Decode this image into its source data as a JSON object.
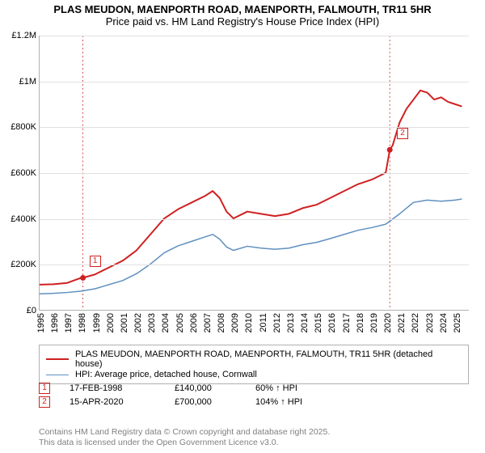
{
  "title": {
    "line1": "PLAS MEUDON, MAENPORTH ROAD, MAENPORTH, FALMOUTH, TR11 5HR",
    "line2": "Price paid vs. HM Land Registry's House Price Index (HPI)"
  },
  "chart": {
    "type": "line",
    "x_years": [
      1995,
      1996,
      1997,
      1998,
      1999,
      2000,
      2001,
      2002,
      2003,
      2004,
      2005,
      2006,
      2007,
      2008,
      2009,
      2010,
      2011,
      2012,
      2013,
      2014,
      2015,
      2016,
      2017,
      2018,
      2019,
      2020,
      2021,
      2022,
      2023,
      2024,
      2025
    ],
    "y_ticks": [
      0,
      200000,
      400000,
      600000,
      800000,
      1000000,
      1200000
    ],
    "y_tick_labels": [
      "£0",
      "£200K",
      "£400K",
      "£600K",
      "£800K",
      "£1M",
      "£1.2M"
    ],
    "ylim": [
      0,
      1200000
    ],
    "xlim": [
      1995,
      2026
    ],
    "background_color": "#ffffff",
    "grid_color": "#e0e0e0",
    "axis_color": "#b0b0b0",
    "series": [
      {
        "name": "property",
        "color": "#d02020",
        "width": 2,
        "points": [
          [
            1995,
            110000
          ],
          [
            1996,
            112000
          ],
          [
            1997,
            118000
          ],
          [
            1998,
            140000
          ],
          [
            1998.13,
            140000
          ],
          [
            1999,
            155000
          ],
          [
            2000,
            185000
          ],
          [
            2001,
            215000
          ],
          [
            2002,
            260000
          ],
          [
            2003,
            330000
          ],
          [
            2004,
            400000
          ],
          [
            2005,
            440000
          ],
          [
            2006,
            470000
          ],
          [
            2007,
            500000
          ],
          [
            2007.5,
            520000
          ],
          [
            2008,
            490000
          ],
          [
            2008.5,
            430000
          ],
          [
            2009,
            400000
          ],
          [
            2010,
            430000
          ],
          [
            2011,
            420000
          ],
          [
            2012,
            410000
          ],
          [
            2013,
            420000
          ],
          [
            2014,
            445000
          ],
          [
            2015,
            460000
          ],
          [
            2016,
            490000
          ],
          [
            2017,
            520000
          ],
          [
            2018,
            550000
          ],
          [
            2019,
            570000
          ],
          [
            2020,
            600000
          ],
          [
            2020.29,
            700000
          ],
          [
            2020.5,
            720000
          ],
          [
            2021,
            820000
          ],
          [
            2021.5,
            880000
          ],
          [
            2022,
            920000
          ],
          [
            2022.5,
            960000
          ],
          [
            2023,
            950000
          ],
          [
            2023.5,
            920000
          ],
          [
            2024,
            930000
          ],
          [
            2024.5,
            910000
          ],
          [
            2025,
            900000
          ],
          [
            2025.5,
            890000
          ]
        ]
      },
      {
        "name": "hpi",
        "color": "#6090c0",
        "width": 1.5,
        "points": [
          [
            1995,
            70000
          ],
          [
            1996,
            72000
          ],
          [
            1997,
            76000
          ],
          [
            1998,
            82000
          ],
          [
            1999,
            92000
          ],
          [
            2000,
            110000
          ],
          [
            2001,
            128000
          ],
          [
            2002,
            158000
          ],
          [
            2003,
            200000
          ],
          [
            2004,
            250000
          ],
          [
            2005,
            280000
          ],
          [
            2006,
            300000
          ],
          [
            2007,
            320000
          ],
          [
            2007.5,
            330000
          ],
          [
            2008,
            310000
          ],
          [
            2008.5,
            275000
          ],
          [
            2009,
            260000
          ],
          [
            2010,
            278000
          ],
          [
            2011,
            270000
          ],
          [
            2012,
            265000
          ],
          [
            2013,
            270000
          ],
          [
            2014,
            285000
          ],
          [
            2015,
            295000
          ],
          [
            2016,
            312000
          ],
          [
            2017,
            330000
          ],
          [
            2018,
            348000
          ],
          [
            2019,
            360000
          ],
          [
            2020,
            375000
          ],
          [
            2021,
            420000
          ],
          [
            2022,
            470000
          ],
          [
            2023,
            480000
          ],
          [
            2024,
            475000
          ],
          [
            2025,
            480000
          ],
          [
            2025.5,
            485000
          ]
        ]
      }
    ],
    "sale_markers": [
      {
        "label": "1",
        "year": 1998.13,
        "price": 140000
      },
      {
        "label": "2",
        "year": 2020.29,
        "price": 700000
      }
    ]
  },
  "legend": {
    "items": [
      {
        "color": "#d02020",
        "width": 2,
        "label": "PLAS MEUDON, MAENPORTH ROAD, MAENPORTH, FALMOUTH, TR11 5HR (detached house)"
      },
      {
        "color": "#6090c0",
        "width": 1.5,
        "label": "HPI: Average price, detached house, Cornwall"
      }
    ]
  },
  "sales": [
    {
      "marker": "1",
      "date": "17-FEB-1998",
      "price": "£140,000",
      "diff": "60% ↑ HPI"
    },
    {
      "marker": "2",
      "date": "15-APR-2020",
      "price": "£700,000",
      "diff": "104% ↑ HPI"
    }
  ],
  "footer": {
    "line1": "Contains HM Land Registry data © Crown copyright and database right 2025.",
    "line2": "This data is licensed under the Open Government Licence v3.0."
  }
}
